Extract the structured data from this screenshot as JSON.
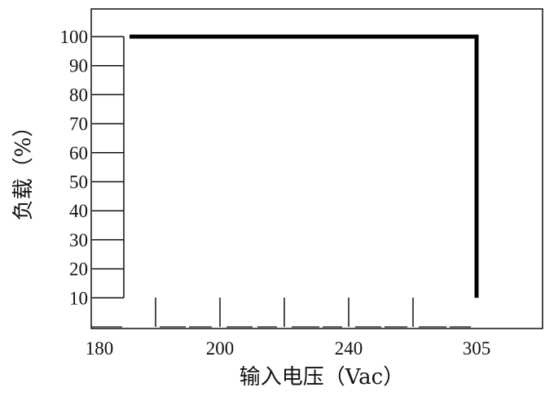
{
  "chart_data": {
    "type": "line",
    "title": "",
    "xlabel": "输入电压（Vac）",
    "ylabel": "负载（%）",
    "x_tick_labels": [
      "180",
      "200",
      "240",
      "305"
    ],
    "y_ticks": [
      10,
      20,
      30,
      40,
      50,
      60,
      70,
      80,
      90,
      100
    ],
    "y_tick_labels": [
      "10",
      "20",
      "30",
      "40",
      "50",
      "60",
      "70",
      "80",
      "90",
      "100"
    ],
    "ylim": [
      0,
      100
    ],
    "grid": false,
    "legend": "none",
    "series": [
      {
        "color": "#000000",
        "points": [
          {
            "x": 185,
            "y": 100
          },
          {
            "x": 305,
            "y": 100
          },
          {
            "x": 305,
            "y": 10
          }
        ]
      }
    ]
  }
}
